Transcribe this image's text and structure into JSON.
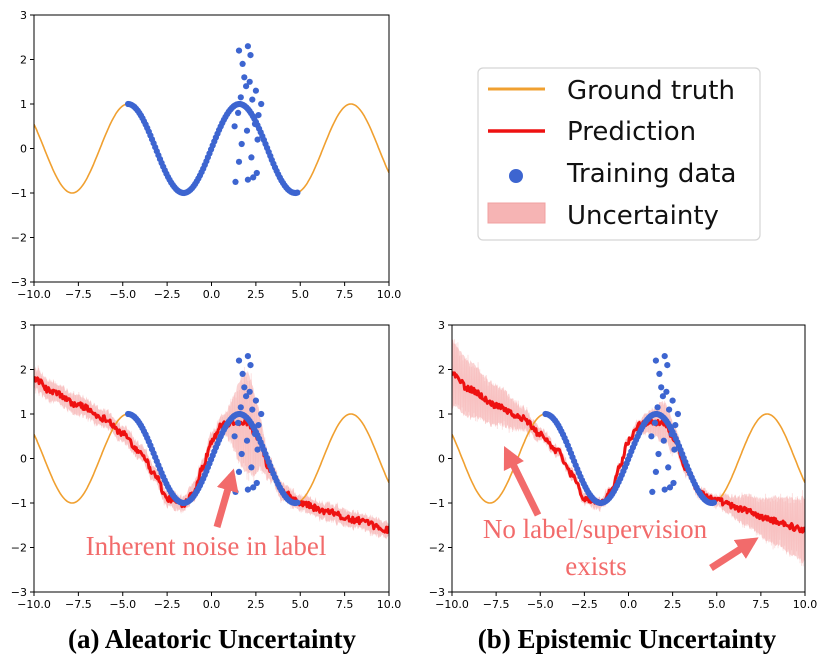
{
  "chart_data": [
    {
      "type": "line",
      "panel": "top-left",
      "xlim": [
        -10.0,
        10.0
      ],
      "ylim": [
        -3,
        3
      ],
      "x_ticks": [
        "−10.0",
        "−7.5",
        "−5.0",
        "−2.5",
        "0.0",
        "2.5",
        "5.0",
        "7.5",
        "10.0"
      ],
      "y_ticks": [
        "−3",
        "−2",
        "−1",
        "0",
        "1",
        "2",
        "3"
      ],
      "series": [
        {
          "name": "Ground truth",
          "function": "sin(x)",
          "range": [
            -10,
            10
          ],
          "color": "#f0a030"
        }
      ],
      "scatter_on_curve": {
        "range": [
          -4.7,
          4.9
        ],
        "function": "sin(x)"
      },
      "scatter_extra": [
        [
          1.55,
          2.2
        ],
        [
          1.75,
          1.9
        ],
        [
          2.05,
          2.3
        ],
        [
          2.2,
          2.1
        ],
        [
          1.85,
          1.6
        ],
        [
          2.15,
          1.5
        ],
        [
          1.95,
          1.4
        ],
        [
          2.5,
          1.3
        ],
        [
          2.8,
          1.0
        ],
        [
          2.3,
          1.1
        ],
        [
          1.65,
          1.15
        ],
        [
          1.5,
          0.8
        ],
        [
          2.65,
          0.75
        ],
        [
          1.3,
          0.5
        ],
        [
          2.45,
          0.55
        ],
        [
          2.0,
          0.4
        ],
        [
          2.6,
          0.2
        ],
        [
          1.7,
          0.1
        ],
        [
          2.25,
          -0.2
        ],
        [
          1.55,
          -0.3
        ],
        [
          2.55,
          -0.55
        ],
        [
          2.05,
          -0.7
        ],
        [
          1.35,
          -0.75
        ],
        [
          2.35,
          -0.65
        ]
      ],
      "legend": {
        "placement": "right",
        "entries": [
          "Ground truth",
          "Prediction",
          "Training data",
          "Uncertainty"
        ],
        "colors": [
          "#f0a030",
          "#ee1111",
          "#3d65d0",
          "#f6b4b4"
        ]
      }
    },
    {
      "type": "line",
      "panel": "bottom-left",
      "xlim": [
        -10.0,
        10.0
      ],
      "ylim": [
        -3,
        3
      ],
      "x_ticks": [
        "−10.0",
        "−7.5",
        "−5.0",
        "−2.5",
        "0.0",
        "2.5",
        "5.0",
        "7.5",
        "10.0"
      ],
      "y_ticks": [
        "−3",
        "−2",
        "−1",
        "0",
        "1",
        "2",
        "3"
      ],
      "prediction_anchors": [
        [
          -10.0,
          1.8
        ],
        [
          -9.0,
          1.5
        ],
        [
          -7.5,
          1.2
        ],
        [
          -6.0,
          0.9
        ],
        [
          -5.0,
          0.55
        ],
        [
          -4.0,
          0.15
        ],
        [
          -3.2,
          -0.35
        ],
        [
          -2.5,
          -0.9
        ],
        [
          -1.6,
          -1.02
        ],
        [
          -1.0,
          -0.75
        ],
        [
          -0.5,
          -0.2
        ],
        [
          0.0,
          0.4
        ],
        [
          0.6,
          0.75
        ],
        [
          1.3,
          0.82
        ],
        [
          2.0,
          0.82
        ],
        [
          2.6,
          0.45
        ],
        [
          3.3,
          -0.25
        ],
        [
          4.0,
          -0.75
        ],
        [
          5.0,
          -1.0
        ],
        [
          6.5,
          -1.2
        ],
        [
          8.0,
          -1.38
        ],
        [
          10.0,
          -1.6
        ]
      ],
      "uncertainty": "heteroscedastic, peaks near x≈2 (training data noise)",
      "annotation": "Inherent noise in label",
      "caption": "(a) Aleatoric Uncertainty"
    },
    {
      "type": "line",
      "panel": "bottom-right",
      "xlim": [
        -10.0,
        10.0
      ],
      "ylim": [
        -3,
        3
      ],
      "x_ticks": [
        "−10.0",
        "−7.5",
        "−5.0",
        "−2.5",
        "0.0",
        "2.5",
        "5.0",
        "7.5",
        "10.0"
      ],
      "y_ticks": [
        "−3",
        "−2",
        "−1",
        "0",
        "1",
        "2",
        "3"
      ],
      "prediction_anchors": [
        [
          -10.0,
          1.9
        ],
        [
          -9.0,
          1.55
        ],
        [
          -7.5,
          1.2
        ],
        [
          -6.0,
          0.9
        ],
        [
          -5.0,
          0.55
        ],
        [
          -4.0,
          0.15
        ],
        [
          -3.2,
          -0.35
        ],
        [
          -2.5,
          -0.9
        ],
        [
          -1.6,
          -1.02
        ],
        [
          -1.0,
          -0.75
        ],
        [
          -0.5,
          -0.2
        ],
        [
          0.0,
          0.4
        ],
        [
          0.6,
          0.75
        ],
        [
          1.3,
          0.82
        ],
        [
          2.0,
          0.82
        ],
        [
          2.6,
          0.45
        ],
        [
          3.3,
          -0.25
        ],
        [
          4.0,
          -0.75
        ],
        [
          5.0,
          -0.95
        ],
        [
          6.5,
          -1.15
        ],
        [
          8.0,
          -1.38
        ],
        [
          10.0,
          -1.6
        ]
      ],
      "uncertainty": "grows away from training data range",
      "annotation_lines": [
        "No label/supervision",
        "exists"
      ],
      "caption": "(b) Epistemic Uncertainty"
    }
  ]
}
